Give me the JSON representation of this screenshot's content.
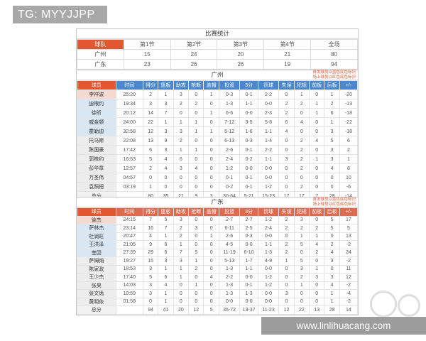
{
  "banner": {
    "text": "TG: MYYJJPP"
  },
  "colors": {
    "accent_orange": "#e2572f",
    "gz_header_blue": "#4a87cd",
    "gd_header_red": "#df6a50",
    "starter_blue_bg": "#d9e7f5",
    "oncourt_red_bg": "#f5dad2",
    "bench_gray_bg": "#ededed",
    "banner_gray": "#a8a8a8",
    "watermark_bar_gray": "#9c9c9c"
  },
  "score_table": {
    "title": "比赛统计",
    "headers": [
      "球队",
      "第1节",
      "第2节",
      "第3节",
      "第4节",
      "全场"
    ],
    "rows": [
      {
        "team": "广州",
        "values": [
          "15",
          "24",
          "20",
          "21",
          "80"
        ]
      },
      {
        "team": "广东",
        "values": [
          "23",
          "26",
          "26",
          "19",
          "94"
        ]
      }
    ]
  },
  "player_tables": [
    {
      "title": "广州",
      "note_line1": "首发球员以蓝色底色标识",
      "note_line2": "场上球员以红色底色标识",
      "headers": [
        "球员",
        "时间",
        "得分",
        "篮板",
        "助攻",
        "抢断",
        "盖帽",
        "投篮",
        "3分",
        "罚球",
        "失误",
        "犯规",
        "前板",
        "后板",
        "+/-"
      ],
      "rows": [
        {
          "name": "李祥波",
          "bg": "red",
          "stats": [
            "25:20",
            "2",
            "1",
            "3",
            "0",
            "1",
            "0-3",
            "0-1",
            "2-2",
            "0",
            "1",
            "0",
            "1",
            "-20"
          ]
        },
        {
          "name": "迪根约",
          "bg": "blue",
          "stats": [
            "19:34",
            "3",
            "3",
            "2",
            "2",
            "0",
            "1-3",
            "1-1",
            "0-0",
            "2",
            "2",
            "1",
            "2",
            "-13"
          ]
        },
        {
          "name": "徐昕",
          "bg": "blue",
          "stats": [
            "20:12",
            "14",
            "7",
            "0",
            "0",
            "1",
            "6-6",
            "0-0",
            "2-3",
            "2",
            "0",
            "1",
            "6",
            "-18"
          ]
        },
        {
          "name": "威金顿",
          "bg": "blue",
          "stats": [
            "24:00",
            "22",
            "1",
            "1",
            "1",
            "0",
            "7-12",
            "3-5",
            "5-8",
            "6",
            "4",
            "0",
            "1",
            "-22"
          ]
        },
        {
          "name": "霍勒迪",
          "bg": "blue",
          "stats": [
            "32:58",
            "12",
            "3",
            "3",
            "1",
            "1",
            "5-12",
            "1-6",
            "1-1",
            "4",
            "0",
            "0",
            "3",
            "-18"
          ]
        },
        {
          "name": "托马斯",
          "bg": "gray",
          "stats": [
            "22:08",
            "13",
            "9",
            "2",
            "0",
            "0",
            "6-13",
            "0-3",
            "1-4",
            "0",
            "2",
            "4",
            "5",
            "6"
          ]
        },
        {
          "name": "陈国豪",
          "bg": "gray",
          "stats": [
            "17:42",
            "6",
            "3",
            "1",
            "1",
            "0",
            "2-6",
            "0-1",
            "2-2",
            "0",
            "2",
            "0",
            "3",
            "2"
          ]
        },
        {
          "name": "郭株约",
          "bg": "gray",
          "stats": [
            "16:53",
            "5",
            "4",
            "6",
            "0",
            "0",
            "2-4",
            "0-2",
            "1-1",
            "3",
            "2",
            "1",
            "3",
            "1"
          ]
        },
        {
          "name": "彭华章",
          "bg": "gray",
          "stats": [
            "12:57",
            "2",
            "4",
            "3",
            "4",
            "0",
            "1-2",
            "0-0",
            "0-0",
            "0",
            "2",
            "0",
            "4",
            "8"
          ]
        },
        {
          "name": "万圣伟",
          "bg": "gray",
          "stats": [
            "04:57",
            "0",
            "0",
            "0",
            "0",
            "0",
            "0-1",
            "0-1",
            "0-0",
            "0",
            "0",
            "0",
            "0",
            "10"
          ]
        },
        {
          "name": "袁照桓",
          "bg": "gray",
          "stats": [
            "03:19",
            "1",
            "0",
            "0",
            "0",
            "0",
            "0-2",
            "0-1",
            "1-2",
            "0",
            "2",
            "0",
            "0",
            "-6"
          ]
        }
      ],
      "total": {
        "label": "总分",
        "stats": [
          "",
          "80",
          "35",
          "21",
          "9",
          "3",
          "30-64",
          "5-21",
          "15-23",
          "17",
          "17",
          "7",
          "28",
          "-14"
        ]
      }
    },
    {
      "title": "广东",
      "note_line1": "首发球员以蓝色底色标识",
      "note_line2": "场上球员以红色底色标识",
      "headers": [
        "球员",
        "时间",
        "得分",
        "篮板",
        "助攻",
        "抢断",
        "盖帽",
        "投篮",
        "3分",
        "罚球",
        "失误",
        "犯规",
        "前板",
        "后板",
        "+/-"
      ],
      "rows": [
        {
          "name": "徐杰",
          "bg": "red",
          "stats": [
            "24:15",
            "7",
            "5",
            "3",
            "0",
            "0",
            "2-7",
            "2-7",
            "1-2",
            "2",
            "3",
            "0",
            "5",
            "17"
          ]
        },
        {
          "name": "萨林杰",
          "bg": "blue",
          "stats": [
            "23:14",
            "16",
            "7",
            "2",
            "3",
            "0",
            "6-11",
            "2-5",
            "2-4",
            "2",
            "2",
            "2",
            "5",
            "5"
          ]
        },
        {
          "name": "杜润旺",
          "bg": "blue",
          "stats": [
            "20:47",
            "4",
            "1",
            "2",
            "0",
            "1",
            "2-6",
            "0-3",
            "0-0",
            "0",
            "1",
            "1",
            "0",
            "13"
          ]
        },
        {
          "name": "王洪泽",
          "bg": "blue",
          "stats": [
            "21:05",
            "9",
            "6",
            "1",
            "0",
            "0",
            "4-5",
            "0-0",
            "1-1",
            "2",
            "5",
            "4",
            "2",
            "-2"
          ]
        },
        {
          "name": "奎因",
          "bg": "blue",
          "stats": [
            "27:39",
            "29",
            "6",
            "7",
            "5",
            "0",
            "11-19",
            "6-10",
            "1-3",
            "2",
            "0",
            "2",
            "4",
            "24"
          ]
        },
        {
          "name": "萨姆纳",
          "bg": "gray",
          "stats": [
            "19:27",
            "15",
            "3",
            "3",
            "1",
            "0",
            "5-13",
            "1-7",
            "4-9",
            "1",
            "5",
            "0",
            "3",
            "-2"
          ]
        },
        {
          "name": "陈家政",
          "bg": "gray",
          "stats": [
            "18:53",
            "3",
            "1",
            "1",
            "2",
            "0",
            "1-3",
            "1-1",
            "0-0",
            "0",
            "3",
            "1",
            "0",
            "11"
          ]
        },
        {
          "name": "王少杰",
          "bg": "gray",
          "stats": [
            "17:40",
            "5",
            "6",
            "1",
            "0",
            "4",
            "2-2",
            "0-0",
            "1-2",
            "0",
            "2",
            "3",
            "3",
            "12"
          ]
        },
        {
          "name": "张昊",
          "bg": "gray",
          "stats": [
            "14:03",
            "3",
            "4",
            "0",
            "1",
            "0",
            "1-3",
            "0-1",
            "1-2",
            "0",
            "1",
            "0",
            "4",
            "-2"
          ]
        },
        {
          "name": "张文逸",
          "bg": "gray",
          "stats": [
            "10:59",
            "3",
            "1",
            "0",
            "0",
            "0",
            "1-3",
            "1-3",
            "0-0",
            "3",
            "0",
            "0",
            "1",
            "-4"
          ]
        },
        {
          "name": "黄明依",
          "bg": "gray",
          "stats": [
            "01:58",
            "0",
            "1",
            "0",
            "0",
            "0",
            "0-0",
            "0-0",
            "0-0",
            "0",
            "0",
            "0",
            "1",
            "-2"
          ]
        }
      ],
      "total": {
        "label": "总分",
        "stats": [
          "",
          "94",
          "41",
          "20",
          "12",
          "5",
          "35-72",
          "13-37",
          "11-23",
          "12",
          "22",
          "13",
          "28",
          "14"
        ]
      }
    }
  ],
  "watermark": {
    "url_text": "www.linlihuacang.com"
  }
}
